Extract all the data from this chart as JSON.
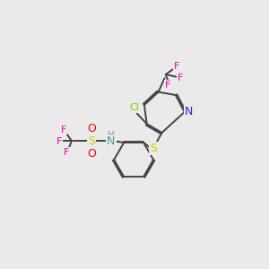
{
  "background_color": "#eaeaea",
  "bond_color": "#444444",
  "atom_colors": {
    "N_pyridine": "#2222ee",
    "N_sulfonamide": "#559999",
    "S": "#cccc00",
    "O": "#ee0000",
    "F": "#ee00aa",
    "Cl": "#77cc00",
    "H": "#888888",
    "C": "#444444"
  },
  "figsize": [
    3.0,
    3.0
  ],
  "dpi": 100
}
